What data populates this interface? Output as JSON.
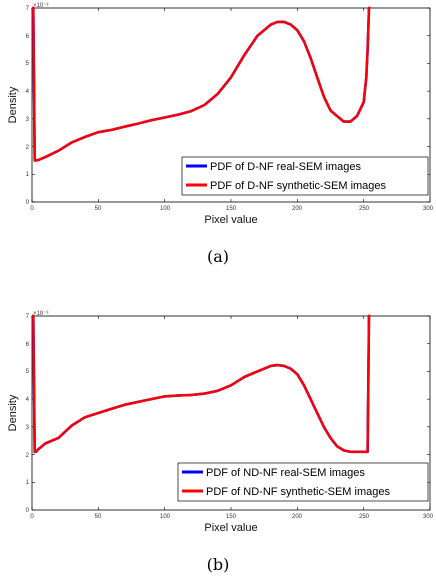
{
  "chart_data": [
    {
      "type": "line",
      "caption": "(a)",
      "xlabel": "Pixel value",
      "ylabel": "Density",
      "y_exponent": "×10⁻³",
      "xlim": [
        0,
        300
      ],
      "ylim": [
        0,
        0.007
      ],
      "x_ticks": [
        "0",
        "50",
        "100",
        "150",
        "200",
        "250",
        "300"
      ],
      "y_ticks": [
        "0",
        "1",
        "2",
        "3",
        "4",
        "5",
        "6",
        "7"
      ],
      "legend_position": "bottom-right",
      "grid": false,
      "series": [
        {
          "name": "PDF of D-NF real-SEM images",
          "color": "#0000ff",
          "x": [
            0,
            1,
            2,
            3,
            5,
            10,
            20,
            30,
            40,
            50,
            60,
            70,
            80,
            90,
            100,
            110,
            120,
            130,
            140,
            150,
            160,
            170,
            180,
            185,
            190,
            195,
            200,
            205,
            210,
            215,
            220,
            225,
            230,
            235,
            240,
            245,
            250,
            252,
            253,
            254,
            255
          ],
          "y": [
            0.007,
            0.007,
            0.0015,
            0.0015,
            0.00152,
            0.00162,
            0.00185,
            0.00215,
            0.00235,
            0.00252,
            0.0026,
            0.00272,
            0.00283,
            0.00295,
            0.00305,
            0.00315,
            0.00328,
            0.0035,
            0.0039,
            0.0045,
            0.0053,
            0.006,
            0.0064,
            0.0065,
            0.0065,
            0.0064,
            0.0062,
            0.0058,
            0.0052,
            0.0045,
            0.0038,
            0.0033,
            0.0031,
            0.0029,
            0.0029,
            0.0031,
            0.0036,
            0.0045,
            0.0055,
            0.007,
            0.007
          ]
        },
        {
          "name": "PDF of D-NF synthetic-SEM images",
          "color": "#ff0000",
          "x": [
            0,
            1,
            2,
            3,
            5,
            10,
            20,
            30,
            40,
            50,
            60,
            70,
            80,
            90,
            100,
            110,
            120,
            130,
            140,
            150,
            160,
            170,
            180,
            185,
            190,
            195,
            200,
            205,
            210,
            215,
            220,
            225,
            230,
            235,
            240,
            245,
            250,
            252,
            253,
            254,
            255
          ],
          "y": [
            0.007,
            0.007,
            0.0015,
            0.0015,
            0.00152,
            0.00162,
            0.00185,
            0.00215,
            0.00235,
            0.00252,
            0.0026,
            0.00272,
            0.00283,
            0.00295,
            0.00305,
            0.00315,
            0.00328,
            0.0035,
            0.0039,
            0.0045,
            0.0053,
            0.006,
            0.0064,
            0.0065,
            0.0065,
            0.0064,
            0.0062,
            0.0058,
            0.0052,
            0.0045,
            0.0038,
            0.0033,
            0.0031,
            0.0029,
            0.0029,
            0.0031,
            0.0036,
            0.0045,
            0.0055,
            0.007,
            0.007
          ]
        }
      ]
    },
    {
      "type": "line",
      "caption": "(b)",
      "xlabel": "Pixel value",
      "ylabel": "Density",
      "y_exponent": "×10⁻³",
      "xlim": [
        0,
        300
      ],
      "ylim": [
        0,
        0.007
      ],
      "x_ticks": [
        "0",
        "50",
        "100",
        "150",
        "200",
        "250",
        "300"
      ],
      "y_ticks": [
        "0",
        "1",
        "2",
        "3",
        "4",
        "5",
        "6",
        "7"
      ],
      "legend_position": "bottom-right",
      "grid": false,
      "series": [
        {
          "name": "PDF of ND-NF real-SEM images",
          "color": "#0000ff",
          "x": [
            0,
            1,
            2,
            3,
            5,
            10,
            20,
            30,
            40,
            50,
            60,
            70,
            80,
            90,
            100,
            110,
            120,
            130,
            140,
            150,
            160,
            170,
            180,
            185,
            190,
            195,
            200,
            205,
            210,
            215,
            220,
            225,
            230,
            235,
            240,
            245,
            250,
            253,
            254,
            255
          ],
          "y": [
            0.007,
            0.007,
            0.0021,
            0.0021,
            0.0022,
            0.0024,
            0.0026,
            0.00305,
            0.00335,
            0.0035,
            0.00365,
            0.0038,
            0.0039,
            0.004,
            0.0041,
            0.00413,
            0.00415,
            0.0042,
            0.0043,
            0.0045,
            0.0048,
            0.005,
            0.0052,
            0.00523,
            0.0052,
            0.0051,
            0.0049,
            0.0045,
            0.004,
            0.0035,
            0.003,
            0.0026,
            0.0023,
            0.00215,
            0.0021,
            0.0021,
            0.0021,
            0.0021,
            0.007,
            0.007
          ]
        },
        {
          "name": "PDF of ND-NF synthetic-SEM images",
          "color": "#ff0000",
          "x": [
            0,
            1,
            2,
            3,
            5,
            10,
            20,
            30,
            40,
            50,
            60,
            70,
            80,
            90,
            100,
            110,
            120,
            130,
            140,
            150,
            160,
            170,
            180,
            185,
            190,
            195,
            200,
            205,
            210,
            215,
            220,
            225,
            230,
            235,
            240,
            245,
            250,
            253,
            254,
            255
          ],
          "y": [
            0.007,
            0.007,
            0.0021,
            0.0021,
            0.0022,
            0.0024,
            0.0026,
            0.00305,
            0.00335,
            0.0035,
            0.00365,
            0.0038,
            0.0039,
            0.004,
            0.0041,
            0.00413,
            0.00415,
            0.0042,
            0.0043,
            0.0045,
            0.0048,
            0.005,
            0.0052,
            0.00523,
            0.0052,
            0.0051,
            0.0049,
            0.0045,
            0.004,
            0.0035,
            0.003,
            0.0026,
            0.0023,
            0.00215,
            0.0021,
            0.0021,
            0.0021,
            0.0021,
            0.007,
            0.007
          ]
        }
      ]
    }
  ]
}
